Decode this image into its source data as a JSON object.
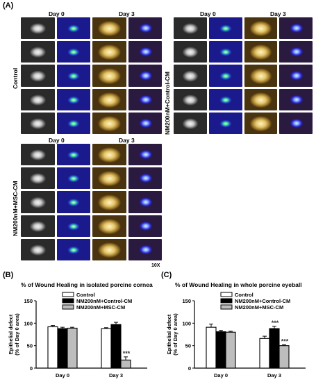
{
  "panel_a": {
    "letter": "(A)",
    "magnification": "10X",
    "groups": [
      {
        "label": "Control",
        "day0": "Day 0",
        "day3": "Day 3"
      },
      {
        "label": "NM200nM+Control-CM",
        "day0": "Day 0",
        "day3": "Day 3"
      },
      {
        "label": "NM200nM+MSC-CM",
        "day0": "Day 0",
        "day3": "Day 3"
      }
    ]
  },
  "colors": {
    "control": "#ffffff",
    "nm_control_cm": "#000000",
    "nm_msc_cm": "#bdbdbd"
  },
  "chart_data": [
    {
      "type": "bar",
      "letter": "(B)",
      "title": "% of Wound Healing in isolated porcine cornea",
      "ylabel": "Epithelial defect\n(% of Day 0 area)",
      "ylim": [
        0,
        150
      ],
      "yticks": [
        0,
        50,
        100,
        150
      ],
      "categories": [
        "Day 0",
        "Day 3"
      ],
      "series": [
        {
          "name": "Control",
          "values": [
            92,
            88
          ],
          "err": [
            3,
            2
          ]
        },
        {
          "name": "NM200nM+Control-CM",
          "values": [
            88,
            97
          ],
          "err": [
            3,
            5
          ]
        },
        {
          "name": "NM200nM+MSC-CM",
          "values": [
            89,
            18
          ],
          "err": [
            2,
            7
          ]
        }
      ],
      "annotations": [
        {
          "category": "Day 3",
          "series": 2,
          "text": "***"
        }
      ],
      "legend": "top-center"
    },
    {
      "type": "bar",
      "letter": "(C)",
      "title": "% of Wound Healing in whole porcine eyeball",
      "ylabel": "Epithelial defect\n(% of Day 0 area)",
      "ylim": [
        0,
        150
      ],
      "yticks": [
        0,
        50,
        100,
        150
      ],
      "categories": [
        "Day 0",
        "Day 3"
      ],
      "series": [
        {
          "name": "Control",
          "values": [
            91,
            66
          ],
          "err": [
            7,
            5
          ]
        },
        {
          "name": "NM200nM+Control-CM",
          "values": [
            81,
            88
          ],
          "err": [
            3,
            5
          ]
        },
        {
          "name": "NM200nM+MSC-CM",
          "values": [
            80,
            50
          ],
          "err": [
            2,
            2
          ]
        }
      ],
      "annotations": [
        {
          "category": "Day 3",
          "series": 1,
          "text": "***"
        },
        {
          "category": "Day 3",
          "series": 2,
          "text": "***"
        }
      ],
      "legend": "top-center"
    }
  ]
}
